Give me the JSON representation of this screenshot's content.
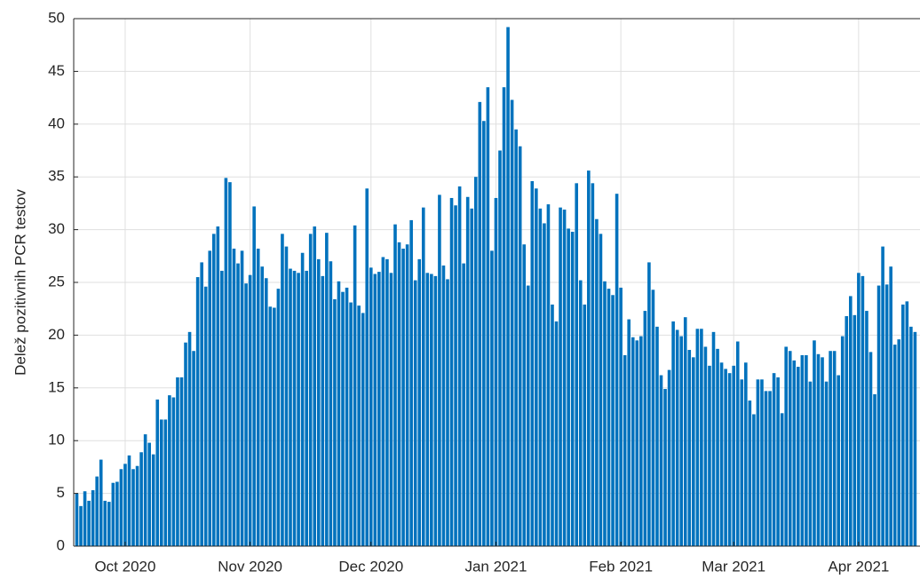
{
  "chart_data": {
    "type": "bar",
    "ylabel": "Delež pozitivnih PCR testov",
    "color": "#0072bd",
    "ylim": [
      0,
      50
    ],
    "yticks": [
      0,
      5,
      10,
      15,
      20,
      25,
      30,
      35,
      40,
      45,
      50
    ],
    "grid": true,
    "categories": [
      null,
      null,
      null,
      null,
      null,
      null,
      null,
      null,
      null,
      null,
      null,
      null,
      "Oct 2020",
      null,
      null,
      null,
      null,
      null,
      null,
      null,
      null,
      null,
      null,
      null,
      null,
      null,
      null,
      null,
      null,
      null,
      null,
      null,
      null,
      null,
      null,
      null,
      null,
      null,
      null,
      null,
      null,
      null,
      null,
      "Nov 2020",
      null,
      null,
      null,
      null,
      null,
      null,
      null,
      null,
      null,
      null,
      null,
      null,
      null,
      null,
      null,
      null,
      null,
      null,
      null,
      null,
      null,
      null,
      null,
      null,
      null,
      null,
      null,
      null,
      null,
      "Dec 2020",
      null,
      null,
      null,
      null,
      null,
      null,
      null,
      null,
      null,
      null,
      null,
      null,
      null,
      null,
      null,
      null,
      null,
      null,
      null,
      null,
      null,
      null,
      null,
      null,
      null,
      null,
      null,
      null,
      null,
      null,
      "Jan 2021",
      null,
      null,
      null,
      null,
      null,
      null,
      null,
      null,
      null,
      null,
      null,
      null,
      null,
      null,
      null,
      null,
      null,
      null,
      null,
      null,
      null,
      null,
      null,
      null,
      null,
      null,
      null,
      null,
      null,
      null,
      "Feb 2021",
      null,
      null,
      null,
      null,
      null,
      null,
      null,
      null,
      null,
      null,
      null,
      null,
      null,
      null,
      null,
      null,
      null,
      null,
      null,
      null,
      null,
      null,
      null,
      null,
      null,
      null,
      null,
      "Mar 2021",
      null,
      null,
      null,
      null,
      null,
      null,
      null,
      null,
      null,
      null,
      null,
      null,
      null,
      null,
      null,
      null,
      null,
      null,
      null,
      null,
      null,
      null,
      null,
      null,
      null,
      null,
      null,
      null,
      null,
      null,
      "Apr 2021",
      null,
      null,
      null,
      null,
      null,
      null,
      null,
      null,
      null,
      null,
      null,
      null,
      null,
      null
    ],
    "values": [
      5.0,
      3.8,
      5.2,
      4.3,
      5.3,
      6.6,
      8.2,
      4.3,
      4.2,
      6.0,
      6.1,
      7.3,
      7.8,
      8.6,
      7.3,
      7.6,
      8.9,
      10.6,
      9.8,
      8.7,
      13.9,
      12.0,
      12.0,
      14.3,
      14.1,
      16.0,
      16.0,
      19.3,
      20.3,
      18.5,
      25.5,
      26.9,
      24.6,
      28.0,
      29.6,
      30.3,
      26.1,
      34.9,
      34.5,
      28.2,
      26.8,
      28.0,
      24.9,
      25.7,
      32.2,
      28.2,
      26.5,
      25.4,
      22.7,
      22.6,
      24.4,
      29.6,
      28.4,
      26.3,
      26.1,
      25.9,
      27.8,
      26.1,
      29.6,
      30.3,
      27.2,
      25.6,
      29.7,
      27.0,
      23.4,
      25.1,
      24.1,
      24.5,
      23.1,
      30.4,
      22.8,
      22.1,
      33.9,
      26.4,
      25.8,
      26.0,
      27.4,
      27.2,
      25.9,
      30.5,
      28.8,
      28.2,
      28.6,
      30.9,
      25.2,
      27.2,
      32.1,
      25.9,
      25.8,
      25.6,
      33.3,
      26.6,
      25.3,
      33.0,
      32.3,
      34.1,
      26.8,
      33.1,
      32.0,
      35.0,
      42.1,
      40.3,
      43.5,
      28.0,
      33.0,
      37.5,
      43.5,
      49.2,
      42.3,
      39.5,
      37.9,
      28.6,
      24.7,
      34.6,
      33.9,
      32.0,
      30.6,
      32.4,
      22.9,
      21.3,
      32.1,
      31.9,
      30.1,
      29.8,
      34.4,
      25.2,
      22.9,
      35.6,
      34.4,
      31.0,
      29.6,
      25.1,
      24.4,
      23.8,
      33.4,
      24.5,
      18.1,
      21.5,
      19.8,
      19.5,
      19.9,
      22.3,
      26.9,
      24.3,
      20.8,
      16.2,
      14.9,
      16.7,
      21.3,
      20.5,
      19.9,
      21.7,
      18.6,
      17.9,
      20.6,
      20.6,
      18.9,
      17.1,
      20.3,
      18.7,
      17.4,
      16.8,
      16.4,
      17.1,
      19.4,
      15.8,
      17.4,
      13.8,
      12.5,
      15.8,
      15.8,
      14.7,
      14.7,
      16.4,
      16.0,
      12.6,
      18.9,
      18.5,
      17.6,
      17.0,
      18.1,
      18.1,
      15.6,
      19.5,
      18.2,
      17.9,
      15.6,
      18.5,
      18.5,
      16.2,
      19.9,
      21.8,
      23.7,
      21.9,
      25.9,
      25.6,
      22.3,
      18.4,
      14.4,
      24.7,
      28.4,
      24.8,
      26.5,
      19.1,
      19.6,
      22.9,
      23.2,
      20.8,
      20.3
    ]
  }
}
